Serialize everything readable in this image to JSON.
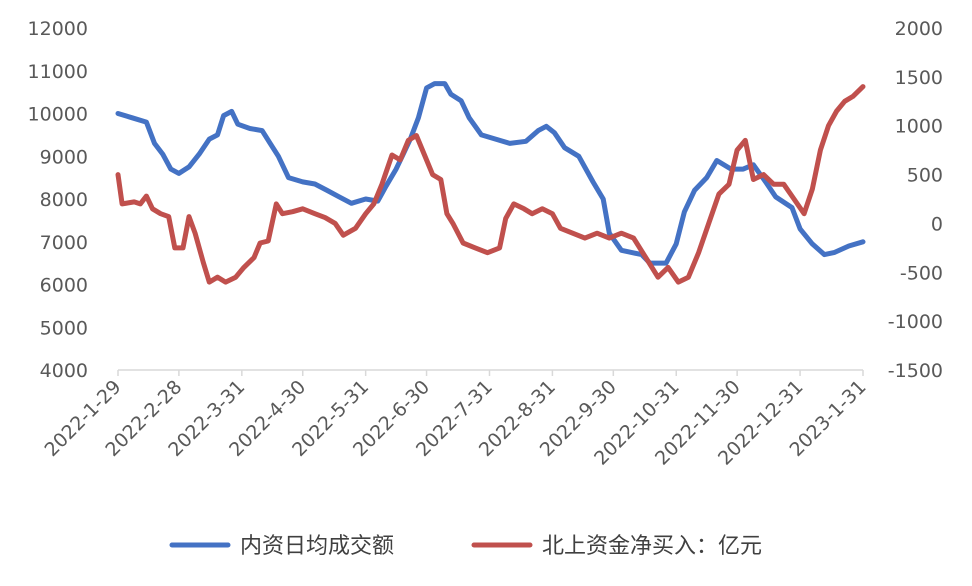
{
  "chart_data": {
    "type": "dual axis",
    "title": "",
    "xlabel": "",
    "ylabel": "",
    "y2label": "",
    "x_categories": [
      "2022-1-29",
      "2022-2-28",
      "2022-3-31",
      "2022-4-30",
      "2022-5-31",
      "2022-6-30",
      "2022-7-31",
      "2022-8-31",
      "2022-9-30",
      "2022-10-31",
      "2022-11-30",
      "2022-12-31",
      "2023-1-31"
    ],
    "ylim": [
      4000,
      12000
    ],
    "y_ticks": [
      "4000",
      "5000",
      "6000",
      "7000",
      "8000",
      "9000",
      "10000",
      "11000",
      "12000"
    ],
    "y2lim": [
      -1500,
      2000
    ],
    "y2_ticks": [
      "-1500",
      "-1000",
      "-500",
      "0",
      "500",
      "1000",
      "1500",
      "2000"
    ],
    "grid": false,
    "legend_position": "bottom",
    "series": [
      {
        "name": "内资日均成交额",
        "axis": "left",
        "color": "#4472C4",
        "points": [
          [
            "2022-1-29",
            10000
          ],
          [
            "2022-2-5",
            9900
          ],
          [
            "2022-2-12",
            9800
          ],
          [
            "2022-2-16",
            9300
          ],
          [
            "2022-2-20",
            9050
          ],
          [
            "2022-2-24",
            8700
          ],
          [
            "2022-2-28",
            8600
          ],
          [
            "2022-3-5",
            8750
          ],
          [
            "2022-3-10",
            9050
          ],
          [
            "2022-3-15",
            9400
          ],
          [
            "2022-3-19",
            9500
          ],
          [
            "2022-3-22",
            9950
          ],
          [
            "2022-3-26",
            10050
          ],
          [
            "2022-3-29",
            9750
          ],
          [
            "2022-4-4",
            9650
          ],
          [
            "2022-4-10",
            9600
          ],
          [
            "2022-4-14",
            9300
          ],
          [
            "2022-4-18",
            9000
          ],
          [
            "2022-4-23",
            8500
          ],
          [
            "2022-4-30",
            8400
          ],
          [
            "2022-5-6",
            8350
          ],
          [
            "2022-5-12",
            8200
          ],
          [
            "2022-5-18",
            8050
          ],
          [
            "2022-5-24",
            7900
          ],
          [
            "2022-5-31",
            8000
          ],
          [
            "2022-6-6",
            7950
          ],
          [
            "2022-6-10",
            8300
          ],
          [
            "2022-6-15",
            8700
          ],
          [
            "2022-6-18",
            9000
          ],
          [
            "2022-6-22",
            9400
          ],
          [
            "2022-6-26",
            9900
          ],
          [
            "2022-6-30",
            10600
          ],
          [
            "2022-7-4",
            10700
          ],
          [
            "2022-7-9",
            10700
          ],
          [
            "2022-7-12",
            10450
          ],
          [
            "2022-7-17",
            10300
          ],
          [
            "2022-7-21",
            9900
          ],
          [
            "2022-7-27",
            9500
          ],
          [
            "2022-8-3",
            9400
          ],
          [
            "2022-8-10",
            9300
          ],
          [
            "2022-8-18",
            9350
          ],
          [
            "2022-8-24",
            9600
          ],
          [
            "2022-8-28",
            9700
          ],
          [
            "2022-9-1",
            9550
          ],
          [
            "2022-9-6",
            9200
          ],
          [
            "2022-9-13",
            9000
          ],
          [
            "2022-9-20",
            8400
          ],
          [
            "2022-9-25",
            8000
          ],
          [
            "2022-9-28",
            7200
          ],
          [
            "2022-10-4",
            6800
          ],
          [
            "2022-10-14",
            6700
          ],
          [
            "2022-10-18",
            6500
          ],
          [
            "2022-10-26",
            6500
          ],
          [
            "2022-10-31",
            6950
          ],
          [
            "2022-11-4",
            7700
          ],
          [
            "2022-11-9",
            8200
          ],
          [
            "2022-11-15",
            8500
          ],
          [
            "2022-11-20",
            8900
          ],
          [
            "2022-11-27",
            8700
          ],
          [
            "2022-12-3",
            8700
          ],
          [
            "2022-12-8",
            8800
          ],
          [
            "2022-12-14",
            8400
          ],
          [
            "2022-12-19",
            8050
          ],
          [
            "2022-12-27",
            7800
          ],
          [
            "2022-12-31",
            7300
          ],
          [
            "2023-1-6",
            6950
          ],
          [
            "2023-1-12",
            6700
          ],
          [
            "2023-1-17",
            6750
          ],
          [
            "2023-1-24",
            6900
          ],
          [
            "2023-1-31",
            7000
          ]
        ]
      },
      {
        "name": "北上资金净买入：亿元",
        "axis": "right",
        "color": "#C0504D",
        "points": [
          [
            "2022-1-29",
            500
          ],
          [
            "2022-1-31",
            200
          ],
          [
            "2022-2-6",
            220
          ],
          [
            "2022-2-9",
            200
          ],
          [
            "2022-2-12",
            280
          ],
          [
            "2022-2-15",
            150
          ],
          [
            "2022-2-19",
            100
          ],
          [
            "2022-2-23",
            70
          ],
          [
            "2022-2-26",
            -250
          ],
          [
            "2022-3-2",
            -250
          ],
          [
            "2022-3-5",
            70
          ],
          [
            "2022-3-8",
            -100
          ],
          [
            "2022-3-12",
            -400
          ],
          [
            "2022-3-15",
            -600
          ],
          [
            "2022-3-19",
            -550
          ],
          [
            "2022-3-23",
            -600
          ],
          [
            "2022-3-28",
            -550
          ],
          [
            "2022-4-1",
            -450
          ],
          [
            "2022-4-6",
            -350
          ],
          [
            "2022-4-9",
            -200
          ],
          [
            "2022-4-13",
            -180
          ],
          [
            "2022-4-17",
            200
          ],
          [
            "2022-4-20",
            100
          ],
          [
            "2022-4-25",
            120
          ],
          [
            "2022-4-30",
            150
          ],
          [
            "2022-5-6",
            100
          ],
          [
            "2022-5-11",
            60
          ],
          [
            "2022-5-16",
            0
          ],
          [
            "2022-5-20",
            -120
          ],
          [
            "2022-5-26",
            -50
          ],
          [
            "2022-5-31",
            100
          ],
          [
            "2022-6-4",
            200
          ],
          [
            "2022-6-8",
            400
          ],
          [
            "2022-6-13",
            700
          ],
          [
            "2022-6-17",
            650
          ],
          [
            "2022-6-21",
            850
          ],
          [
            "2022-6-25",
            900
          ],
          [
            "2022-6-29",
            700
          ],
          [
            "2022-7-3",
            500
          ],
          [
            "2022-7-7",
            450
          ],
          [
            "2022-7-10",
            100
          ],
          [
            "2022-7-13",
            0
          ],
          [
            "2022-7-18",
            -200
          ],
          [
            "2022-7-24",
            -250
          ],
          [
            "2022-7-30",
            -300
          ],
          [
            "2022-8-5",
            -250
          ],
          [
            "2022-8-8",
            50
          ],
          [
            "2022-8-12",
            200
          ],
          [
            "2022-8-17",
            150
          ],
          [
            "2022-8-21",
            100
          ],
          [
            "2022-8-26",
            150
          ],
          [
            "2022-8-31",
            100
          ],
          [
            "2022-9-4",
            -50
          ],
          [
            "2022-9-10",
            -100
          ],
          [
            "2022-9-16",
            -150
          ],
          [
            "2022-9-22",
            -100
          ],
          [
            "2022-9-28",
            -150
          ],
          [
            "2022-10-4",
            -100
          ],
          [
            "2022-10-10",
            -150
          ],
          [
            "2022-10-16",
            -350
          ],
          [
            "2022-10-22",
            -550
          ],
          [
            "2022-10-27",
            -450
          ],
          [
            "2022-11-1",
            -600
          ],
          [
            "2022-11-6",
            -550
          ],
          [
            "2022-11-11",
            -300
          ],
          [
            "2022-11-16",
            0
          ],
          [
            "2022-11-21",
            300
          ],
          [
            "2022-11-26",
            400
          ],
          [
            "2022-11-30",
            750
          ],
          [
            "2022-12-4",
            850
          ],
          [
            "2022-12-8",
            450
          ],
          [
            "2022-12-13",
            500
          ],
          [
            "2022-12-18",
            400
          ],
          [
            "2022-12-23",
            400
          ],
          [
            "2022-12-28",
            250
          ],
          [
            "2023-1-2",
            100
          ],
          [
            "2023-1-6",
            350
          ],
          [
            "2023-1-10",
            750
          ],
          [
            "2023-1-14",
            1000
          ],
          [
            "2023-1-18",
            1150
          ],
          [
            "2023-1-22",
            1250
          ],
          [
            "2023-1-26",
            1300
          ],
          [
            "2023-1-31",
            1400
          ]
        ]
      }
    ]
  }
}
